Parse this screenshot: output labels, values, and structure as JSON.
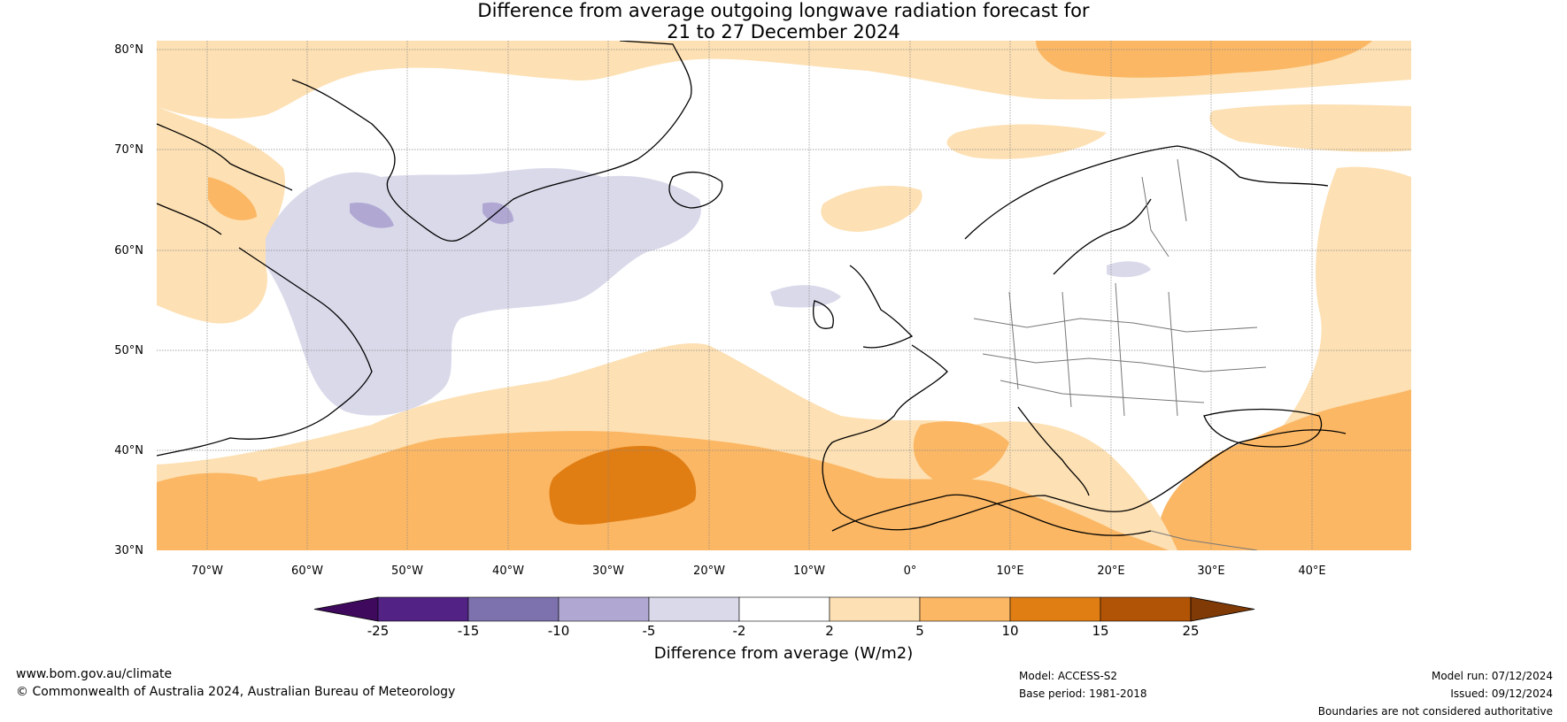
{
  "title_line1": "Difference from average outgoing longwave radiation forecast for",
  "title_line2": "21 to 27 December 2024",
  "lat_labels": [
    "80°N",
    "70°N",
    "60°N",
    "50°N",
    "40°N",
    "30°N"
  ],
  "lon_labels": [
    "70°W",
    "60°W",
    "50°W",
    "40°W",
    "30°W",
    "20°W",
    "10°W",
    "0°",
    "10°E",
    "20°E",
    "30°E",
    "40°E"
  ],
  "colorbar": {
    "title": "Difference from average (W/m2)",
    "ticks": [
      "-25",
      "-15",
      "-10",
      "-5",
      "-2",
      "2",
      "5",
      "10",
      "15",
      "25"
    ],
    "colors": [
      "#3f0a5e",
      "#522285",
      "#7e72ae",
      "#b0a8d3",
      "#d9d9ea",
      "#ffffff",
      "#fde0b3",
      "#fbb764",
      "#e07d13",
      "#b25405",
      "#7f3a06"
    ]
  },
  "footer": {
    "website": "www.bom.gov.au/climate",
    "copyright": "© Commonwealth of Australia 2024, Australian Bureau of Meteorology",
    "model": "Model: ACCESS-S2",
    "base_period": "Base period: 1981-2018",
    "model_run": "Model run: 07/12/2024",
    "issued": "Issued: 09/12/2024",
    "disclaimer": "Boundaries are not considered authoritative"
  }
}
